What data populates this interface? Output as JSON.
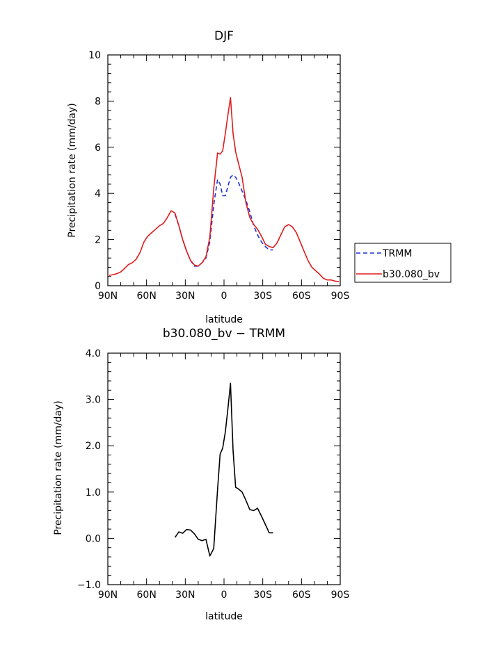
{
  "chart_data": [
    {
      "type": "line",
      "title": "DJF",
      "xlabel": "latitude",
      "ylabel": "Precipitation rate (mm/day)",
      "xlim": [
        -90,
        90
      ],
      "ylim": [
        0,
        10
      ],
      "xticks": [
        -90,
        -60,
        -30,
        0,
        30,
        60,
        90
      ],
      "xtick_labels": [
        "90N",
        "60N",
        "30N",
        "0",
        "30S",
        "60S",
        "90S"
      ],
      "yticks": [
        0,
        2,
        4,
        6,
        8,
        10
      ],
      "ytick_labels": [
        "0",
        "2",
        "4",
        "6",
        "8",
        "10"
      ],
      "legend_position": "right",
      "series": [
        {
          "name": "TRMM",
          "color": "#1f2fd6",
          "style": "dashed",
          "x": [
            -38,
            -35,
            -32,
            -29,
            -26,
            -23,
            -20,
            -17,
            -14,
            -11,
            -8,
            -5,
            -3,
            -1,
            1,
            3,
            5,
            7,
            9,
            11,
            14,
            17,
            20,
            23,
            26,
            29,
            32,
            35,
            38
          ],
          "y": [
            3.1,
            2.6,
            2.0,
            1.5,
            1.1,
            0.85,
            0.85,
            1.0,
            1.2,
            1.9,
            3.5,
            4.6,
            4.4,
            3.9,
            3.9,
            4.3,
            4.7,
            4.8,
            4.7,
            4.5,
            4.1,
            3.7,
            3.2,
            2.6,
            2.2,
            1.9,
            1.7,
            1.55,
            1.55
          ]
        },
        {
          "name": "b30.080_bv",
          "color": "#e01b1b",
          "style": "solid",
          "x": [
            -89,
            -86,
            -83,
            -80,
            -77,
            -74,
            -71,
            -68,
            -65,
            -62,
            -59,
            -56,
            -53,
            -50,
            -47,
            -44,
            -41,
            -38,
            -35,
            -32,
            -29,
            -26,
            -23,
            -20,
            -17,
            -14,
            -11,
            -8,
            -5,
            -3,
            -1,
            1,
            3,
            5,
            7,
            9,
            11,
            14,
            17,
            20,
            23,
            26,
            29,
            32,
            35,
            38,
            41,
            44,
            47,
            50,
            53,
            56,
            59,
            62,
            65,
            68,
            71,
            74,
            77,
            80,
            83,
            86,
            89
          ],
          "y": [
            0.45,
            0.48,
            0.52,
            0.6,
            0.75,
            0.92,
            1.0,
            1.15,
            1.45,
            1.9,
            2.15,
            2.3,
            2.45,
            2.6,
            2.7,
            2.95,
            3.25,
            3.15,
            2.6,
            2.0,
            1.5,
            1.1,
            0.9,
            0.85,
            1.0,
            1.25,
            2.1,
            4.2,
            5.75,
            5.7,
            5.85,
            6.6,
            7.4,
            8.15,
            6.6,
            5.8,
            5.35,
            4.7,
            3.6,
            2.95,
            2.65,
            2.45,
            2.15,
            1.8,
            1.7,
            1.65,
            1.85,
            2.2,
            2.55,
            2.65,
            2.55,
            2.3,
            1.9,
            1.5,
            1.1,
            0.8,
            0.65,
            0.5,
            0.32,
            0.25,
            0.25,
            0.2,
            0.18
          ]
        }
      ]
    },
    {
      "type": "line",
      "title": "b30.080_bv − TRMM",
      "xlabel": "latitude",
      "ylabel": "Precipitation rate (mm/day)",
      "xlim": [
        -90,
        90
      ],
      "ylim": [
        -1.0,
        4.0
      ],
      "xticks": [
        -90,
        -60,
        -30,
        0,
        30,
        60,
        90
      ],
      "xtick_labels": [
        "90N",
        "60N",
        "30N",
        "0",
        "30S",
        "60S",
        "90S"
      ],
      "yticks": [
        -1.0,
        0.0,
        1.0,
        2.0,
        3.0,
        4.0
      ],
      "ytick_labels": [
        "−1.0",
        "0.0",
        "1.0",
        "2.0",
        "3.0",
        "4.0"
      ],
      "series": [
        {
          "name": "b30.080_bv − TRMM",
          "color": "#000000",
          "style": "solid",
          "x": [
            -38,
            -35,
            -32,
            -29,
            -26,
            -23,
            -20,
            -17,
            -14,
            -11,
            -8,
            -5,
            -3,
            -1,
            1,
            3,
            5,
            7,
            9,
            11,
            14,
            17,
            20,
            23,
            26,
            29,
            32,
            35,
            38
          ],
          "y": [
            0.02,
            0.14,
            0.11,
            0.19,
            0.18,
            0.1,
            -0.02,
            -0.05,
            -0.02,
            -0.38,
            -0.22,
            1.05,
            1.82,
            1.95,
            2.3,
            2.8,
            3.35,
            1.9,
            1.1,
            1.07,
            1.0,
            0.82,
            0.62,
            0.6,
            0.65,
            0.48,
            0.3,
            0.12,
            0.12
          ]
        }
      ]
    }
  ]
}
